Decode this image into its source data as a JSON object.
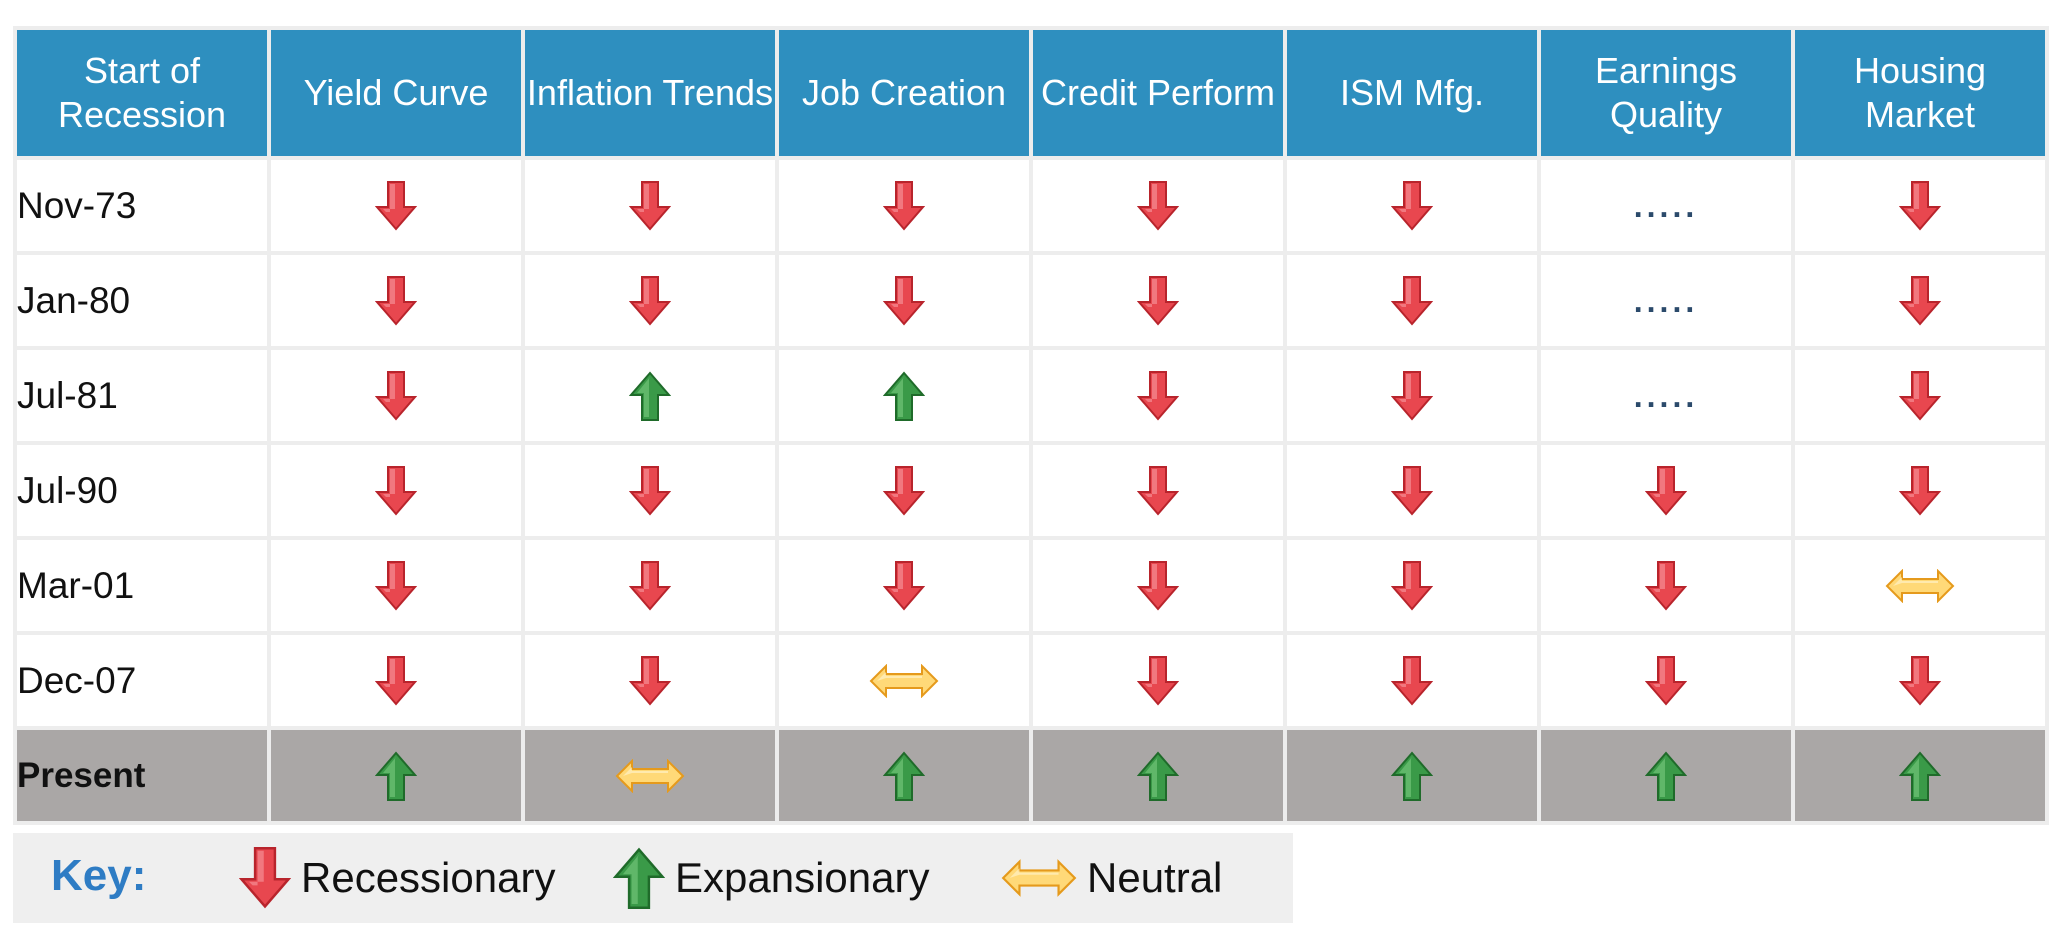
{
  "chart_data": {
    "type": "table",
    "columns": [
      "Start of Recession",
      "Yield Curve",
      "Inflation Trends",
      "Job Creation",
      "Credit Perform",
      "ISM Mfg.",
      "Earnings Quality",
      "Housing Market"
    ],
    "rows": [
      {
        "label": "Nov-73",
        "values": [
          "down",
          "down",
          "down",
          "down",
          "down",
          "none",
          "down"
        ]
      },
      {
        "label": "Jan-80",
        "values": [
          "down",
          "down",
          "down",
          "down",
          "down",
          "none",
          "down"
        ]
      },
      {
        "label": "Jul-81",
        "values": [
          "down",
          "up",
          "up",
          "down",
          "down",
          "none",
          "down"
        ]
      },
      {
        "label": "Jul-90",
        "values": [
          "down",
          "down",
          "down",
          "down",
          "down",
          "down",
          "down"
        ]
      },
      {
        "label": "Mar-01",
        "values": [
          "down",
          "down",
          "down",
          "down",
          "down",
          "down",
          "neutral"
        ]
      },
      {
        "label": "Dec-07",
        "values": [
          "down",
          "down",
          "neutral",
          "down",
          "down",
          "down",
          "down"
        ]
      },
      {
        "label": "Present",
        "values": [
          "up",
          "neutral",
          "up",
          "up",
          "up",
          "up",
          "up"
        ],
        "highlight": true
      }
    ],
    "missing_marker": ".....",
    "colors": {
      "header_bg": "#2e8fbf",
      "present_bg": "#aaa7a6",
      "down": "#e8474f",
      "up": "#3a9a48",
      "neutral": "#ffd978"
    }
  },
  "key": {
    "title": "Key:",
    "items": [
      {
        "icon": "down-arrow-icon",
        "label": "Recessionary"
      },
      {
        "icon": "up-arrow-icon",
        "label": "Expansionary"
      },
      {
        "icon": "neutral-arrow-icon",
        "label": "Neutral"
      }
    ]
  }
}
